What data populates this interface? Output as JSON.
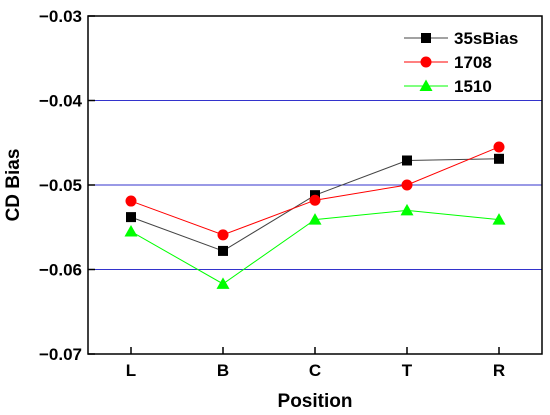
{
  "chart_data": {
    "type": "line",
    "title": "",
    "xlabel": "Position",
    "ylabel": "CD Bias",
    "categories": [
      "L",
      "B",
      "C",
      "T",
      "R"
    ],
    "ylim": [
      -0.07,
      -0.03
    ],
    "yticks": [
      -0.07,
      -0.06,
      -0.05,
      -0.04,
      -0.03
    ],
    "ytick_labels": [
      "−0.07",
      "−0.06",
      "−0.05",
      "−0.04",
      "−0.03"
    ],
    "grid": "horizontal lines at -0.06, -0.05, -0.04",
    "legend_position": "top-right",
    "series": [
      {
        "name": "35sBias",
        "marker": "square",
        "color": "#000000",
        "line_color": "#444444",
        "values": [
          -0.0538,
          -0.0578,
          -0.0512,
          -0.0471,
          -0.0469
        ]
      },
      {
        "name": "1708",
        "marker": "circle",
        "color": "#ff0000",
        "line_color": "#ff0000",
        "values": [
          -0.0519,
          -0.0559,
          -0.0518,
          -0.05,
          -0.0455
        ]
      },
      {
        "name": "1510",
        "marker": "triangle",
        "color": "#00ff00",
        "line_color": "#00ff00",
        "values": [
          -0.0555,
          -0.0617,
          -0.0541,
          -0.053,
          -0.0541
        ]
      }
    ],
    "gridline_color": "#3333cc"
  }
}
